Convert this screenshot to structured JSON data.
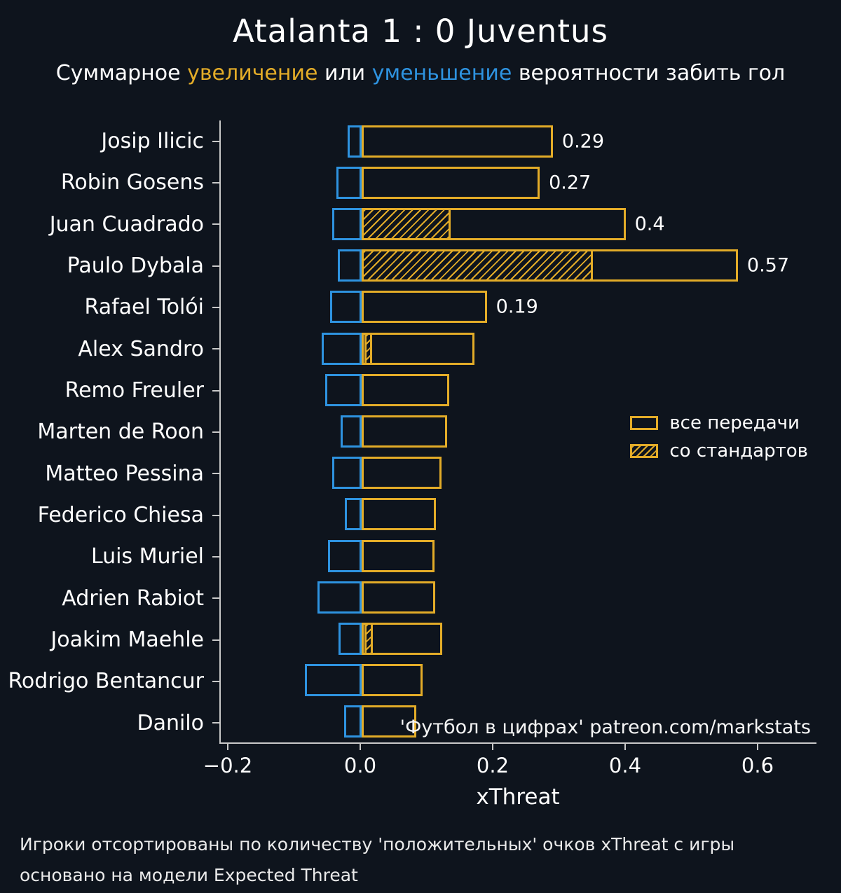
{
  "title": "Atalanta 1 : 0 Juventus",
  "subtitle": {
    "prefix": "Суммарное ",
    "increase_word": "увеличение",
    "middle": " или ",
    "decrease_word": "уменьшение",
    "suffix": " вероятности забить гол"
  },
  "colors": {
    "background": "#0e141d",
    "positive": "#e3ac28",
    "negative": "#2e93e0",
    "axis": "#c9c9c9",
    "text": "#ffffff"
  },
  "legend": {
    "all_passes": "все передачи",
    "set_pieces": "со стандартов"
  },
  "watermark": "'Футбол в цифрах' patreon.com/markstats",
  "footnote_line1": "Игроки отсортированы по количеству 'положительных' очков xThreat с игры",
  "footnote_line2": "основано на модели Expected Threat",
  "chart_data": {
    "type": "bar",
    "orientation": "horizontal",
    "xlabel": "xThreat",
    "xlim": [
      -0.2127,
      0.6889
    ],
    "x_ticks": [
      {
        "value": -0.2,
        "label": "−0.2"
      },
      {
        "value": 0.0,
        "label": "0.0"
      },
      {
        "value": 0.2,
        "label": "0.2"
      },
      {
        "value": 0.4,
        "label": "0.4"
      },
      {
        "value": 0.6,
        "label": "0.6"
      }
    ],
    "series_legend": [
      "все передачи",
      "со стандартов"
    ],
    "players": [
      {
        "name": "Josip Ilicic",
        "positive": 0.29,
        "negative": -0.021,
        "set_piece": null,
        "value_label": "0.29"
      },
      {
        "name": "Robin Gosens",
        "positive": 0.27,
        "negative": -0.038,
        "set_piece": null,
        "value_label": "0.27"
      },
      {
        "name": "Juan Cuadrado",
        "positive": 0.4,
        "negative": -0.044,
        "set_piece": [
          0.0,
          0.135
        ],
        "value_label": "0.4"
      },
      {
        "name": "Paulo Dybala",
        "positive": 0.57,
        "negative": -0.036,
        "set_piece": [
          0.0,
          0.351
        ],
        "value_label": "0.57"
      },
      {
        "name": "Rafael Tolói",
        "positive": 0.19,
        "negative": -0.047,
        "set_piece": null,
        "value_label": "0.19"
      },
      {
        "name": "Alex Sandro",
        "positive": 0.171,
        "negative": -0.06,
        "set_piece": [
          0.005,
          0.016
        ],
        "value_label": ""
      },
      {
        "name": "Remo Freuler",
        "positive": 0.133,
        "negative": -0.055,
        "set_piece": null,
        "value_label": ""
      },
      {
        "name": "Marten de Roon",
        "positive": 0.13,
        "negative": -0.031,
        "set_piece": null,
        "value_label": ""
      },
      {
        "name": "Matteo Pessina",
        "positive": 0.121,
        "negative": -0.044,
        "set_piece": null,
        "value_label": ""
      },
      {
        "name": "Federico Chiesa",
        "positive": 0.113,
        "negative": -0.025,
        "set_piece": null,
        "value_label": ""
      },
      {
        "name": "Luis Muriel",
        "positive": 0.111,
        "negative": -0.05,
        "set_piece": null,
        "value_label": ""
      },
      {
        "name": "Adrien Rabiot",
        "positive": 0.112,
        "negative": -0.066,
        "set_piece": null,
        "value_label": ""
      },
      {
        "name": "Joakim Maehle",
        "positive": 0.123,
        "negative": -0.034,
        "set_piece": [
          0.005,
          0.017
        ],
        "value_label": ""
      },
      {
        "name": "Rodrigo Bentancur",
        "positive": 0.093,
        "negative": -0.085,
        "set_piece": null,
        "value_label": ""
      },
      {
        "name": "Danilo",
        "positive": 0.083,
        "negative": -0.026,
        "set_piece": null,
        "value_label": ""
      }
    ]
  }
}
